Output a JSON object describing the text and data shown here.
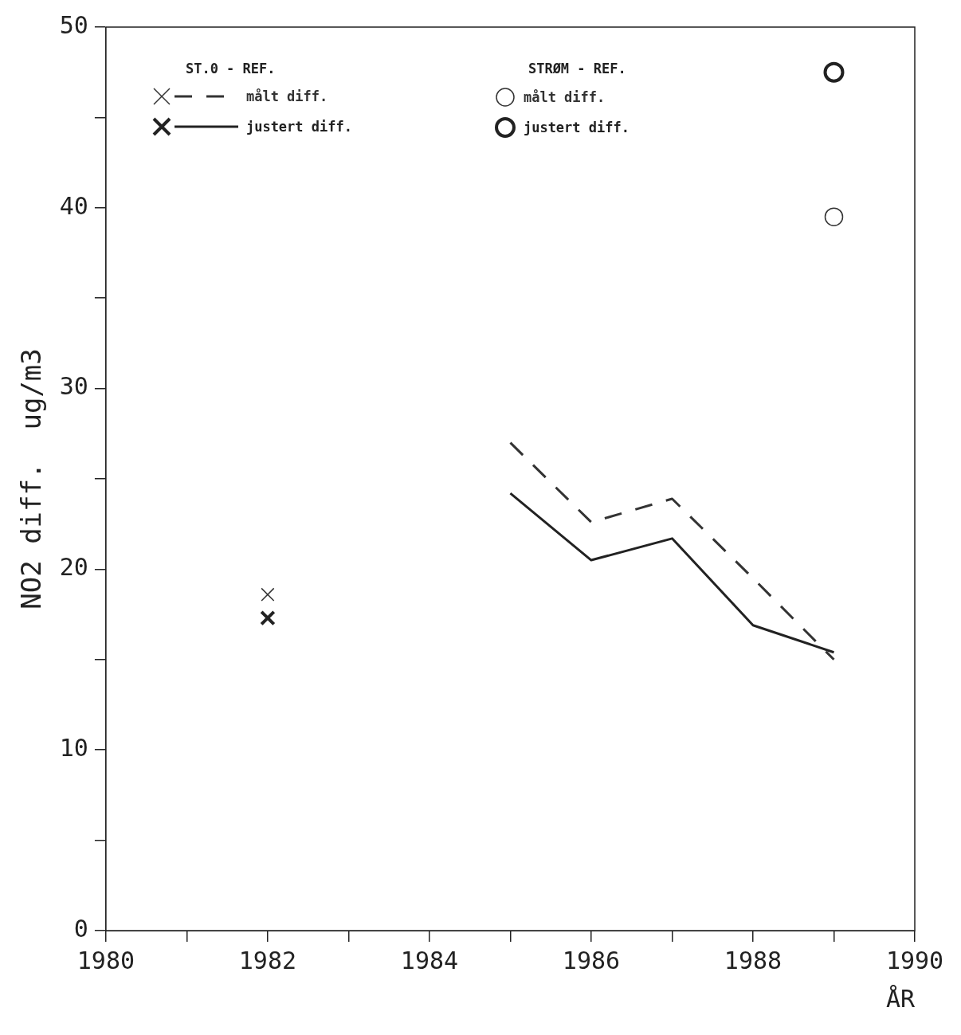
{
  "chart_data": {
    "type": "line",
    "xlabel": "ÅR",
    "ylabel": "NO2 diff.  ug/m3",
    "xlim": [
      1980,
      1990
    ],
    "ylim": [
      0,
      50
    ],
    "xticks": [
      1980,
      {
        "value": 1981,
        "label": null
      },
      1982,
      {
        "value": 1983,
        "label": null
      },
      1984,
      {
        "value": 1985,
        "label": null
      },
      1986,
      {
        "value": 1987,
        "label": null
      },
      1988,
      {
        "value": 1989,
        "label": null
      },
      1990
    ],
    "yticks": [
      0,
      {
        "value": 5,
        "label": null
      },
      10,
      {
        "value": 15,
        "label": null
      },
      20,
      {
        "value": 25,
        "label": null
      },
      30,
      {
        "value": 35,
        "label": null
      },
      40,
      {
        "value": 45,
        "label": null
      },
      50
    ],
    "grid": false,
    "legend": "top",
    "annotations": [
      "ST.0 - REF.",
      "STRØM - REF."
    ],
    "series": [
      {
        "name": "målt diff.",
        "color": "#333333",
        "x": [
          1985,
          1986,
          1987,
          1988,
          1989
        ],
        "values": [
          27.0,
          22.6,
          23.9,
          19.5,
          15.0
        ],
        "marker": "none",
        "line_style": "dashed"
      },
      {
        "name": "justert diff.",
        "color": "#222222",
        "x": [
          1985,
          1986,
          1987,
          1988,
          1989
        ],
        "values": [
          24.2,
          20.5,
          21.7,
          16.9,
          15.4
        ],
        "marker": "none",
        "line_style": "solid"
      },
      {
        "type": "scatter",
        "color": "#333333",
        "x": [
          1982
        ],
        "values": [
          18.6
        ],
        "marker": "cross"
      },
      {
        "type": "scatter",
        "color": "#222222",
        "x": [
          1982
        ],
        "values": [
          17.3
        ],
        "marker": "cross"
      },
      {
        "name": "målt diff.",
        "type": "scatter",
        "color": "#333333",
        "x": [
          1989
        ],
        "values": [
          39.5
        ],
        "marker": "circle"
      },
      {
        "name": "justert diff.",
        "type": "scatter",
        "color": "#222222",
        "x": [
          1989
        ],
        "values": [
          47.5
        ],
        "marker": "circle"
      }
    ]
  }
}
